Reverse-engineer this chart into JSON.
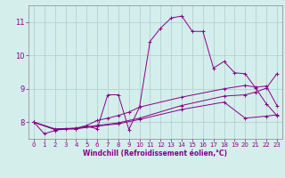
{
  "title": "",
  "xlabel": "Windchill (Refroidissement éolien,°C)",
  "background_color": "#d4eeec",
  "line_color": "#880088",
  "grid_color": "#aacccc",
  "xlim": [
    -0.5,
    23.5
  ],
  "ylim": [
    7.5,
    11.5
  ],
  "yticks": [
    8,
    9,
    10,
    11
  ],
  "xticks": [
    0,
    1,
    2,
    3,
    4,
    5,
    6,
    7,
    8,
    9,
    10,
    11,
    12,
    13,
    14,
    15,
    16,
    17,
    18,
    19,
    20,
    21,
    22,
    23
  ],
  "series1": [
    [
      0,
      8.0
    ],
    [
      1,
      7.65
    ],
    [
      2,
      7.75
    ],
    [
      3,
      7.8
    ],
    [
      4,
      7.8
    ],
    [
      5,
      7.88
    ],
    [
      6,
      7.8
    ],
    [
      7,
      8.82
    ],
    [
      8,
      8.82
    ],
    [
      9,
      7.78
    ],
    [
      10,
      8.45
    ],
    [
      11,
      10.42
    ],
    [
      12,
      10.82
    ],
    [
      13,
      11.12
    ],
    [
      14,
      11.18
    ],
    [
      15,
      10.72
    ],
    [
      16,
      10.72
    ],
    [
      17,
      9.62
    ],
    [
      18,
      9.82
    ],
    [
      19,
      9.48
    ],
    [
      20,
      9.45
    ],
    [
      21,
      9.02
    ],
    [
      22,
      8.55
    ],
    [
      23,
      8.2
    ]
  ],
  "series2": [
    [
      0,
      8.0
    ],
    [
      2,
      7.78
    ],
    [
      4,
      7.82
    ],
    [
      5,
      7.9
    ],
    [
      6,
      8.05
    ],
    [
      7,
      8.12
    ],
    [
      8,
      8.2
    ],
    [
      9,
      8.3
    ],
    [
      10,
      8.45
    ],
    [
      14,
      8.75
    ],
    [
      18,
      9.0
    ],
    [
      20,
      9.1
    ],
    [
      21,
      9.05
    ],
    [
      22,
      9.08
    ],
    [
      23,
      8.5
    ]
  ],
  "series3": [
    [
      0,
      8.0
    ],
    [
      2,
      7.78
    ],
    [
      4,
      7.8
    ],
    [
      6,
      7.88
    ],
    [
      8,
      7.95
    ],
    [
      10,
      8.08
    ],
    [
      14,
      8.38
    ],
    [
      18,
      8.6
    ],
    [
      20,
      8.12
    ],
    [
      22,
      8.18
    ],
    [
      23,
      8.22
    ]
  ],
  "series4": [
    [
      0,
      8.0
    ],
    [
      2,
      7.8
    ],
    [
      4,
      7.82
    ],
    [
      6,
      7.9
    ],
    [
      8,
      7.98
    ],
    [
      10,
      8.12
    ],
    [
      14,
      8.5
    ],
    [
      18,
      8.78
    ],
    [
      20,
      8.82
    ],
    [
      21,
      8.9
    ],
    [
      22,
      9.02
    ],
    [
      23,
      9.45
    ]
  ]
}
